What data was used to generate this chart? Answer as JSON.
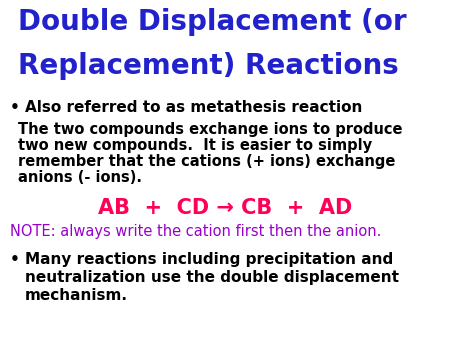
{
  "title_line1": "Double Displacement (or",
  "title_line2": "Replacement) Reactions",
  "title_color": "#2222cc",
  "bullet1_text": "Also referred to as metathesis reaction",
  "bullet1_color": "#000000",
  "para_lines": [
    "The two compounds exchange ions to produce",
    "two new compounds.  It is easier to simply",
    "remember that the cations (+ ions) exchange",
    "anions (- ions)."
  ],
  "para_color": "#000000",
  "equation": "AB  +  CD → CB  +  AD",
  "equation_color": "#ff0055",
  "note": "NOTE: always write the cation first then the anion.",
  "note_color": "#9900cc",
  "bullet2_lines": [
    "Many reactions including precipitation and",
    "neutralization use the double displacement",
    "mechanism."
  ],
  "bullet2_color": "#000000",
  "bg_color": "#ffffff",
  "title_fontsize": 20,
  "bullet_fontsize": 11,
  "para_fontsize": 10.5,
  "equation_fontsize": 15,
  "note_fontsize": 10.5,
  "bullet2_fontsize": 11
}
